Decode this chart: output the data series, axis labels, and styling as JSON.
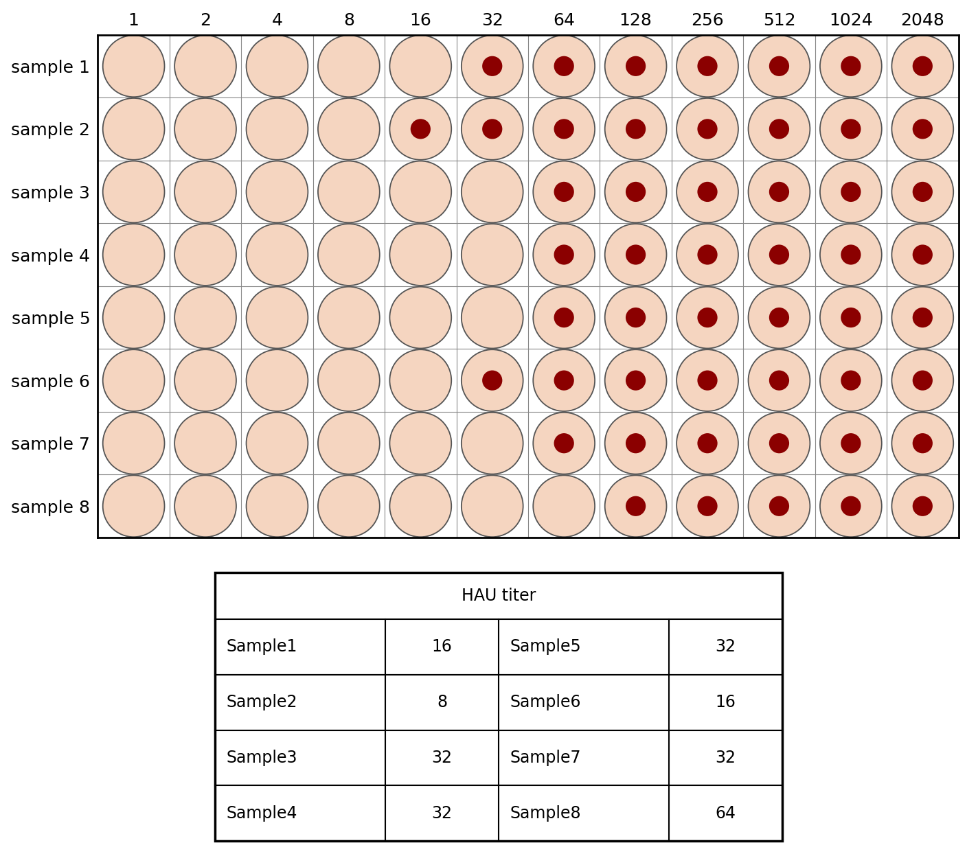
{
  "cols": [
    1,
    2,
    4,
    8,
    16,
    32,
    64,
    128,
    256,
    512,
    1024,
    2048
  ],
  "row_labels": [
    "sample 1",
    "sample 2",
    "sample 3",
    "sample 4",
    "sample 5",
    "sample 6",
    "sample 7",
    "sample 8"
  ],
  "n_cols": 12,
  "n_rows": 8,
  "dot_start_col": [
    5,
    4,
    6,
    6,
    6,
    5,
    6,
    7
  ],
  "well_color": "#f5d5c0",
  "well_edge_color": "#555555",
  "dot_color": "#8b0000",
  "grid_color": "#888888",
  "background_color": "#ffffff",
  "table_title": "HAU titer",
  "table_data": [
    [
      "Sample1",
      "16",
      "Sample5",
      "32"
    ],
    [
      "Sample2",
      "8",
      "Sample6",
      "16"
    ],
    [
      "Sample3",
      "32",
      "Sample7",
      "32"
    ],
    [
      "Sample4",
      "32",
      "Sample8",
      "64"
    ]
  ],
  "label_fontsize": 18,
  "col_label_fontsize": 18,
  "table_fontsize": 17
}
